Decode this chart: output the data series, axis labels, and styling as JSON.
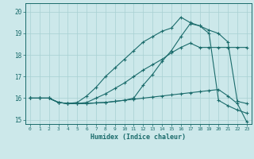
{
  "xlabel": "Humidex (Indice chaleur)",
  "ylabel": "",
  "bg_color": "#cce8ea",
  "grid_color": "#a8d0d3",
  "line_color": "#1a6b6b",
  "xlim": [
    -0.5,
    23.5
  ],
  "ylim": [
    14.8,
    20.4
  ],
  "yticks": [
    15,
    16,
    17,
    18,
    19,
    20
  ],
  "xticks": [
    0,
    1,
    2,
    3,
    4,
    5,
    6,
    7,
    8,
    9,
    10,
    11,
    12,
    13,
    14,
    15,
    16,
    17,
    18,
    19,
    20,
    21,
    22,
    23
  ],
  "series": [
    [
      16.0,
      16.0,
      16.0,
      15.8,
      15.75,
      15.75,
      15.75,
      15.78,
      15.8,
      15.85,
      15.9,
      15.95,
      16.0,
      16.05,
      16.1,
      16.15,
      16.2,
      16.25,
      16.3,
      16.35,
      16.4,
      16.1,
      15.75,
      14.9
    ],
    [
      16.0,
      16.0,
      16.0,
      15.8,
      15.75,
      15.75,
      15.8,
      16.0,
      16.2,
      16.45,
      16.7,
      17.0,
      17.3,
      17.55,
      17.8,
      18.1,
      18.35,
      18.55,
      18.35,
      18.35,
      18.35,
      18.35,
      18.35,
      18.35
    ],
    [
      16.0,
      16.0,
      16.0,
      15.8,
      15.75,
      15.8,
      16.1,
      16.5,
      17.0,
      17.4,
      17.8,
      18.2,
      18.6,
      18.85,
      19.1,
      19.25,
      19.75,
      19.5,
      19.35,
      19.15,
      19.0,
      18.6,
      15.85,
      15.75
    ],
    [
      16.0,
      16.0,
      16.0,
      15.8,
      15.75,
      15.75,
      15.75,
      15.78,
      15.8,
      15.85,
      15.9,
      16.0,
      16.6,
      17.1,
      17.7,
      18.2,
      18.85,
      19.45,
      19.35,
      19.0,
      15.9,
      15.65,
      15.45,
      15.3
    ]
  ]
}
